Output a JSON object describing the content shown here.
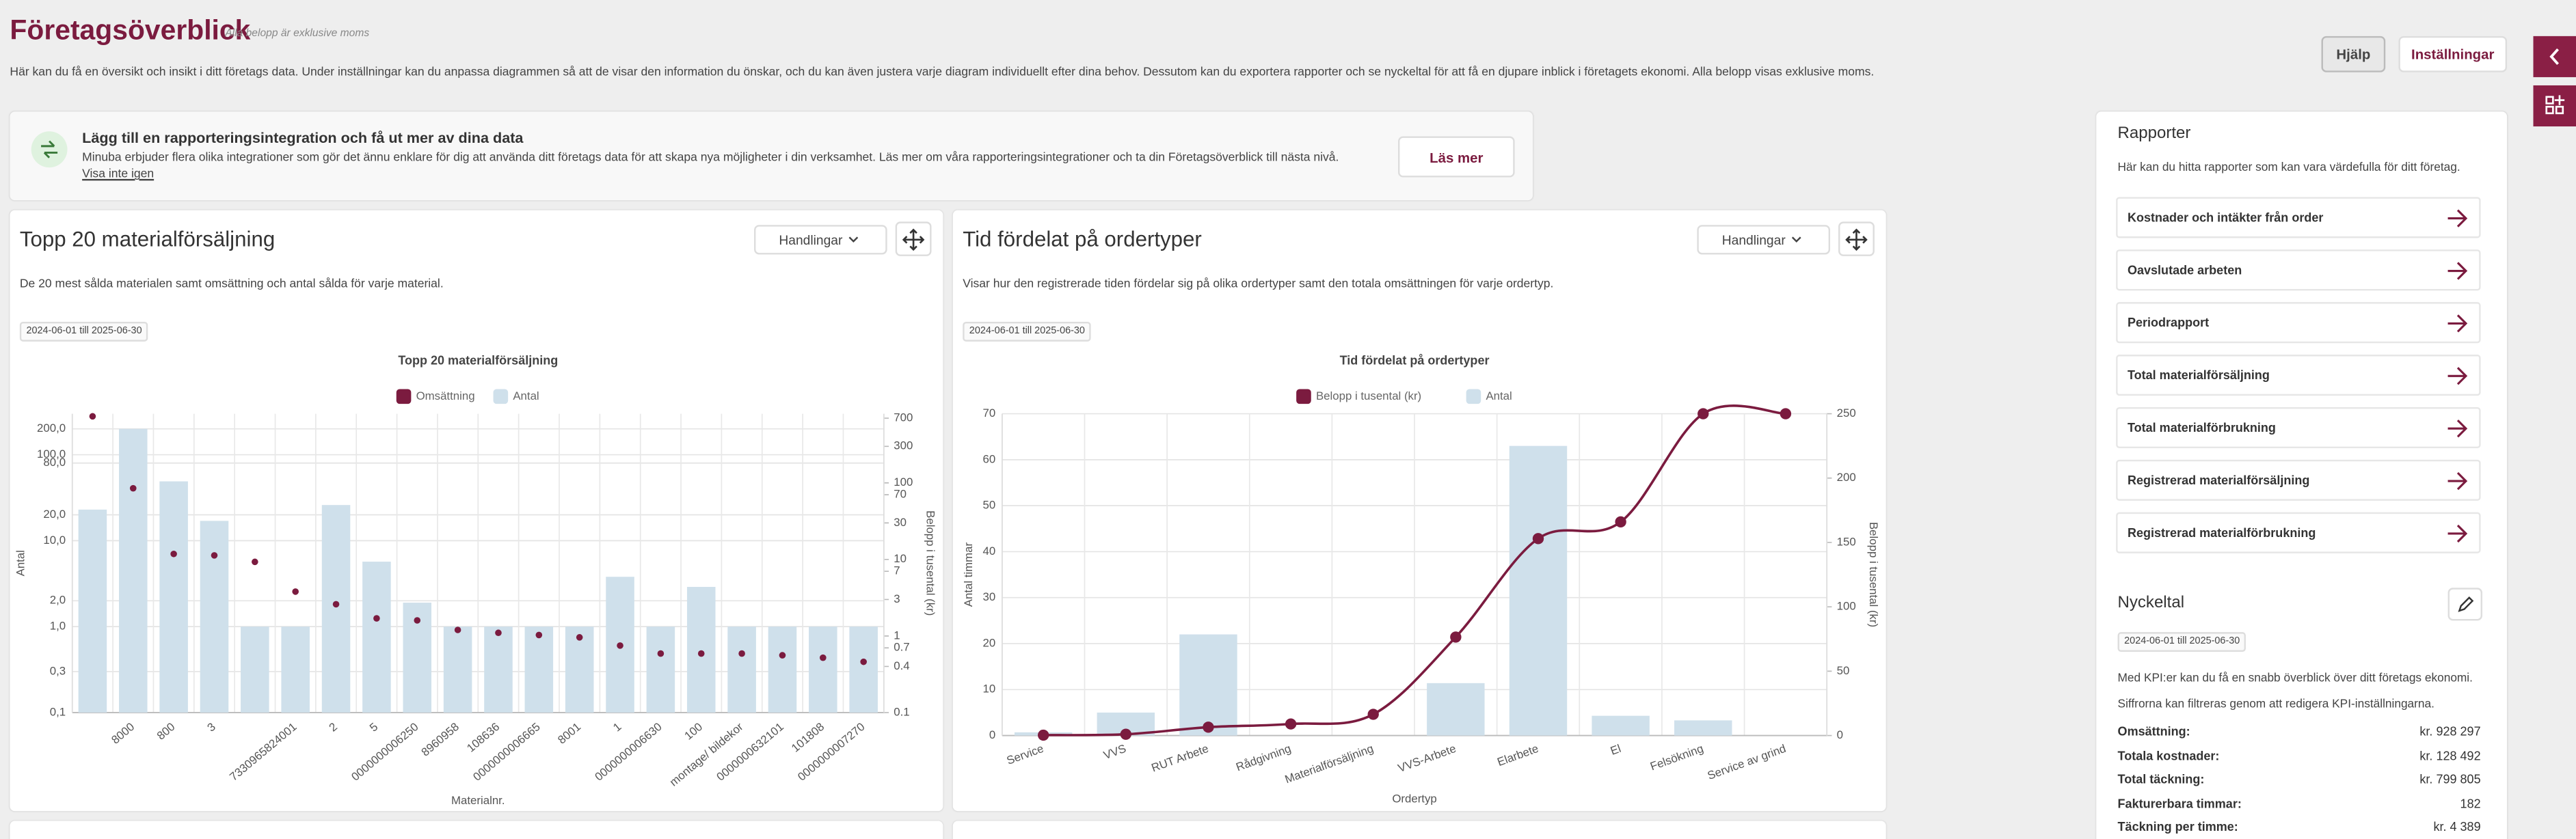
{
  "header": {
    "title": "Företagsöverblick",
    "subtitle": "Alla belopp är exklusive moms",
    "description": "Här kan du få en översikt och insikt i ditt företags data. Under inställningar kan du anpassa diagrammen så att de visar den information du önskar, och du kan även justera varje diagram individuellt efter dina behov. Dessutom kan du exportera rapporter och se nyckeltal för att få en djupare inblick i företagets ekonomi. Alla belopp visas exklusive moms.",
    "buttons": [
      "Hjälp",
      "Inställningar"
    ]
  },
  "banner": {
    "title": "Lägg till en rapporteringsintegration och få ut mer av dina data",
    "text": "Minuba erbjuder flera olika integrationer som gör det ännu enklare för dig att använda ditt företags data för att skapa nya möjligheter i din verksamhet. Läs mer om våra rapporteringsintegrationer och ta din Företagsöverblick till nästa nivå.",
    "dismiss": "Visa inte igen",
    "button": "Läs mer"
  },
  "cards": [
    {
      "title": "Topp 20 materialförsäljning",
      "action": "Handlingar",
      "description": "De 20 mest sålda materialen samt omsättning och antal sålda för varje material.",
      "date": "2024-06-01 till 2025-06-30"
    },
    {
      "title": "Tid fördelat på ordertyper",
      "action": "Handlingar",
      "description": "Visar hur den registrerade tiden fördelar sig på olika ordertyper samt den totala omsättningen för varje ordertyp.",
      "date": "2024-06-01 till 2025-06-30"
    }
  ],
  "chart_data": [
    {
      "type": "bar",
      "title": "Topp 20 materialförsäljning",
      "xlabel": "Materialnr.",
      "ylabel": "Antal",
      "y2label": "Belopp i tusental (kr)",
      "ylog": true,
      "y2log": true,
      "grid": true,
      "categories": [
        null,
        "8000",
        "800",
        "3",
        null,
        "7330965824001",
        "2",
        "5",
        "0000000006250",
        "8960958",
        "108636",
        "0000000006665",
        "8001",
        "1",
        "0000000006630",
        "100",
        "montage/ bildekor",
        "0000000632101",
        "101808",
        "0000000007270"
      ],
      "ylim": [
        0.1,
        300
      ],
      "yticks": [
        {
          "value": 0.1,
          "label": "0,1"
        },
        {
          "value": 0.3,
          "label": "0,3"
        },
        {
          "value": 1,
          "label": "1,0"
        },
        {
          "value": 2,
          "label": "2,0"
        },
        {
          "value": 10,
          "label": "10,0"
        },
        {
          "value": 20,
          "label": "20,0"
        },
        {
          "value": 80,
          "label": "80,0"
        },
        {
          "value": 100,
          "label": "100,0"
        },
        {
          "value": 200,
          "label": "200,0"
        }
      ],
      "y2lim": [
        0.1,
        800
      ],
      "y2ticks": [
        0.1,
        0.4,
        0.7,
        1,
        3,
        7,
        10,
        30,
        70,
        100,
        300,
        700
      ],
      "series": [
        {
          "name": "Omsättning",
          "type": "scatter",
          "axis": "y2",
          "color": "#7b1b3f",
          "values": [
            740,
            85,
            11.8,
            11.3,
            9.3,
            3.8,
            2.6,
            1.7,
            1.6,
            1.2,
            1.1,
            1.03,
            0.96,
            0.75,
            0.59,
            0.59,
            0.59,
            0.56,
            0.52,
            0.46
          ]
        },
        {
          "name": "Antal",
          "type": "bar",
          "color": "#cfe0eb",
          "values": [
            23,
            200,
            49,
            17,
            1,
            1,
            26,
            5.7,
            1.9,
            1,
            1,
            1,
            1,
            3.8,
            1,
            2.9,
            1,
            1,
            1,
            1
          ]
        }
      ]
    },
    {
      "type": "bar",
      "title": "Tid fördelat på ordertyper",
      "xlabel": "Ordertyp",
      "ylabel": "Antal timmar",
      "y2label": "Belopp i tusental (kr)",
      "ylog": false,
      "y2log": false,
      "grid": true,
      "categories": [
        "Service",
        "VVS",
        "RUT Arbete",
        "Rådgivning",
        "Materialförsäljning",
        "VVS-Arbete",
        "Elarbete",
        "El",
        "Felsökning",
        "Service av grind"
      ],
      "ylim": [
        0,
        70
      ],
      "yticks": [
        0,
        10,
        20,
        30,
        40,
        50,
        60,
        70
      ],
      "y2lim": [
        0,
        250
      ],
      "y2ticks": [
        0,
        50,
        100,
        150,
        200,
        250
      ],
      "series": [
        {
          "name": "Belopp i tusental (kr)",
          "type": "line",
          "axis": "y2",
          "color": "#7b1b3f",
          "values": [
            0.3,
            1,
            6.5,
            9,
            16.5,
            76.5,
            153,
            166,
            250,
            250
          ]
        },
        {
          "name": "Antal",
          "type": "bar",
          "color": "#cfe0eb",
          "values": [
            0.7,
            5,
            22,
            0,
            0,
            11.4,
            63,
            4.3,
            3.3,
            0
          ]
        }
      ]
    }
  ],
  "sidebar": {
    "reports": {
      "title": "Rapporter",
      "description": "Här kan du hitta rapporter som kan vara värdefulla för ditt företag.",
      "items": [
        "Kostnader och intäkter från order",
        "Oavslutade arbeten",
        "Periodrapport",
        "Total materialförsäljning",
        "Total materialförbrukning",
        "Registrerad materialförsäljning",
        "Registrerad materialförbrukning"
      ]
    },
    "kpis": {
      "title": "Nyckeltal",
      "date": "2024-06-01 till 2025-06-30",
      "description": [
        "Med KPI:er kan du få en snabb överblick över ditt företags ekonomi.",
        "Siffrorna kan filtreras genom att redigera KPI-inställningarna."
      ],
      "rows": [
        [
          "Omsättning:",
          "kr. 928 297"
        ],
        [
          "Totala kostnader:",
          "kr. 128 492"
        ],
        [
          "Total täckning:",
          "kr. 799 805"
        ],
        [
          "Fakturerbara timmar:",
          "182"
        ],
        [
          "Täckning per timme:",
          "kr. 4 389"
        ]
      ]
    }
  }
}
